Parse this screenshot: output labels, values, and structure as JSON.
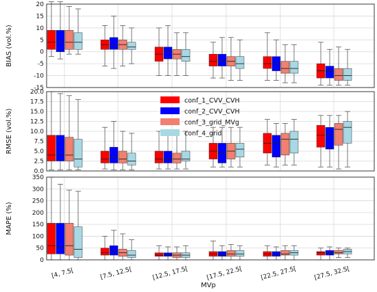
{
  "colors": {
    "conf_1_CVV_CVH": "#ff0000",
    "conf_2_CVV_CVH": "#0000ff",
    "conf_3_grid_MVg": "#f08070",
    "conf_4_grid": "#a8d8e4",
    "grid": "#d8d8d8",
    "whisker": "#555555"
  },
  "chart_data": [
    {
      "type": "box",
      "ylabel": "BIAS (vol.%)",
      "ylim": [
        -15,
        20
      ],
      "yticks": [
        -15,
        -10,
        -5,
        0,
        5,
        10,
        15,
        20
      ],
      "categories": [
        "[4, 7.5[",
        "[7.5, 12.5[",
        "[12.5, 17.5[",
        "[17.5, 22.5[",
        "[22.5, 27.5[",
        "[27.5, 32.5["
      ],
      "series": [
        {
          "name": "conf_1_CVV_CVH",
          "boxes": [
            [
              -2,
              1,
              4,
              9,
              21
            ],
            [
              -6,
              1,
              3,
              5,
              11
            ],
            [
              -10,
              -4,
              -1,
              2,
              10
            ],
            [
              -11,
              -6,
              -4,
              -1,
              4
            ],
            [
              -12,
              -7,
              -5,
              -2,
              8
            ],
            [
              -14,
              -11,
              -8,
              -5,
              4
            ]
          ]
        },
        {
          "name": "conf_2_CVV_CVH",
          "boxes": [
            [
              -3,
              0,
              4,
              9,
              21
            ],
            [
              -7,
              1,
              3,
              6,
              15
            ],
            [
              -10,
              -3,
              0,
              2,
              11
            ],
            [
              -11,
              -6,
              -4,
              -1,
              6
            ],
            [
              -12,
              -8,
              -5,
              -2,
              5
            ],
            [
              -14,
              -11,
              -8,
              -6,
              1
            ]
          ]
        },
        {
          "name": "conf_3_grid_MVg",
          "boxes": [
            [
              -1,
              1,
              4,
              9,
              19
            ],
            [
              -6,
              1,
              3,
              5,
              11
            ],
            [
              -10,
              -3,
              -1,
              1,
              8
            ],
            [
              -12,
              -6,
              -4,
              -2,
              6
            ],
            [
              -13,
              -9,
              -7,
              -4,
              3
            ],
            [
              -14,
              -12,
              -10,
              -7,
              2
            ]
          ]
        },
        {
          "name": "conf_4_grid",
          "boxes": [
            [
              -1,
              1,
              4,
              8,
              18
            ],
            [
              -5,
              1,
              2,
              4,
              10
            ],
            [
              -10,
              -4,
              -2,
              1,
              8
            ],
            [
              -12,
              -7,
              -5,
              -2,
              5
            ],
            [
              -13,
              -9,
              -7,
              -4,
              3
            ],
            [
              -14,
              -12,
              -10,
              -7,
              1
            ]
          ]
        }
      ]
    },
    {
      "type": "box",
      "ylabel": "RMSE (vol.%)",
      "ylim": [
        0,
        20
      ],
      "yticks": [
        0.0,
        2.5,
        5.0,
        7.5,
        10.0,
        12.5,
        15.0,
        17.5,
        20.0
      ],
      "categories": [
        "[4, 7.5[",
        "[7.5, 12.5[",
        "[12.5, 17.5[",
        "[17.5, 22.5[",
        "[22.5, 27.5[",
        "[27.5, 32.5["
      ],
      "series": [
        {
          "name": "conf_1_CVV_CVH",
          "boxes": [
            [
              0.3,
              2.5,
              4,
              9,
              20
            ],
            [
              0.5,
              2,
              3,
              5,
              11
            ],
            [
              0.5,
              2,
              3,
              5,
              10
            ],
            [
              1,
              3,
              5,
              7,
              11
            ],
            [
              1.5,
              4.5,
              7,
              9.5,
              13
            ],
            [
              1,
              6,
              9,
              11.5,
              14
            ]
          ]
        },
        {
          "name": "conf_2_CVV_CVH",
          "boxes": [
            [
              0.3,
              2.5,
              4,
              9,
              19.5
            ],
            [
              0.3,
              2,
              3.5,
              6,
              12.5
            ],
            [
              0.5,
              2,
              3,
              5,
              10
            ],
            [
              1,
              2,
              4.5,
              7,
              11
            ],
            [
              1,
              3.5,
              7,
              9,
              12
            ],
            [
              1,
              5.5,
              9,
              11,
              14
            ]
          ]
        },
        {
          "name": "conf_3_grid_MVg",
          "boxes": [
            [
              0.3,
              2.5,
              4,
              8.5,
              19
            ],
            [
              0.3,
              2,
              3,
              5,
              10
            ],
            [
              0.5,
              2,
              3,
              4.5,
              9
            ],
            [
              1,
              3,
              5,
              7,
              11
            ],
            [
              1.5,
              4,
              8,
              9.5,
              12
            ],
            [
              0.5,
              6.5,
              10.5,
              12,
              14
            ]
          ]
        },
        {
          "name": "conf_4_grid",
          "boxes": [
            [
              0.3,
              1,
              3,
              8,
              18
            ],
            [
              0.3,
              1.5,
              2.5,
              4.5,
              9.5
            ],
            [
              0.5,
              2.5,
              3,
              5,
              10
            ],
            [
              1,
              3.5,
              5.5,
              7,
              11
            ],
            [
              1.5,
              4.5,
              8,
              10,
              13
            ],
            [
              1,
              7,
              11,
              12.5,
              15
            ]
          ]
        }
      ]
    },
    {
      "type": "box",
      "ylabel": "MAPE (%)",
      "ylim": [
        0,
        350
      ],
      "yticks": [
        0,
        50,
        100,
        150,
        200,
        250,
        300,
        350
      ],
      "categories": [
        "[4, 7.5[",
        "[7.5, 12.5[",
        "[12.5, 17.5[",
        "[17.5, 22.5[",
        "[22.5, 27.5[",
        "[27.5, 32.5["
      ],
      "series": [
        {
          "name": "conf_1_CVV_CVH",
          "boxes": [
            [
              0,
              25,
              60,
              155,
              350
            ],
            [
              0,
              20,
              30,
              50,
              100
            ],
            [
              0,
              15,
              20,
              30,
              60
            ],
            [
              0,
              15,
              25,
              35,
              80
            ],
            [
              0,
              15,
              25,
              35,
              60
            ],
            [
              0,
              20,
              30,
              35,
              50
            ]
          ]
        },
        {
          "name": "conf_2_CVV_CVH",
          "boxes": [
            [
              0,
              25,
              55,
              155,
              320
            ],
            [
              0,
              20,
              40,
              60,
              125
            ],
            [
              0,
              15,
              20,
              30,
              55
            ],
            [
              0,
              15,
              20,
              35,
              60
            ],
            [
              0,
              15,
              25,
              35,
              55
            ],
            [
              0,
              20,
              30,
              40,
              55
            ]
          ]
        },
        {
          "name": "conf_3_grid_MVg",
          "boxes": [
            [
              0,
              20,
              60,
              155,
              295
            ],
            [
              0,
              15,
              30,
              45,
              110
            ],
            [
              0,
              10,
              20,
              30,
              55
            ],
            [
              0,
              15,
              25,
              40,
              65
            ],
            [
              0,
              20,
              25,
              40,
              60
            ],
            [
              10,
              25,
              30,
              40,
              50
            ]
          ]
        },
        {
          "name": "conf_4_grid",
          "boxes": [
            [
              0,
              10,
              45,
              140,
              290
            ],
            [
              0,
              10,
              20,
              40,
              85
            ],
            [
              0,
              10,
              20,
              30,
              60
            ],
            [
              0,
              15,
              25,
              40,
              60
            ],
            [
              0,
              20,
              30,
              40,
              60
            ],
            [
              10,
              25,
              35,
              45,
              50
            ]
          ]
        }
      ]
    }
  ],
  "legend": {
    "placement": "center",
    "entries": [
      "conf_1_CVV_CVH",
      "conf_2_CVV_CVH",
      "conf_3_grid_MVg",
      "conf_4_grid"
    ]
  },
  "xlabel": "MVp"
}
